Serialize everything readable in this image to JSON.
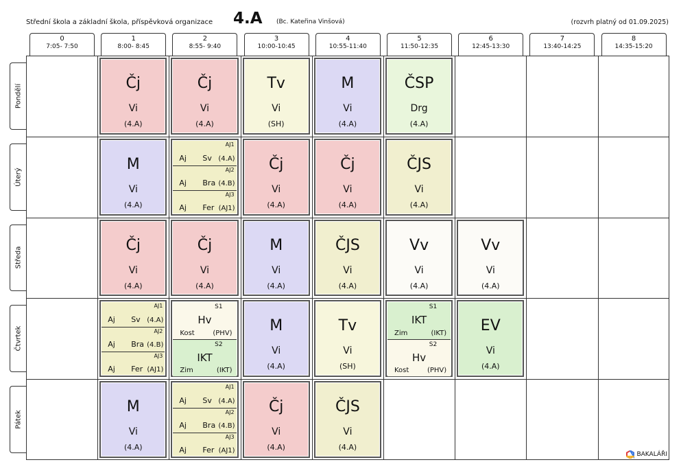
{
  "header": {
    "school": "Střední škola a základní škola, příspěvková organizace",
    "class_name": "4.A",
    "teacher": "(Bc. Kateřina Vinšová)",
    "validity": "(rozvrh platný od 01.09.2025)"
  },
  "periods": [
    {
      "num": "0",
      "time": "7:05- 7:50"
    },
    {
      "num": "1",
      "time": "8:00- 8:45"
    },
    {
      "num": "2",
      "time": "8:55- 9:40"
    },
    {
      "num": "3",
      "time": "10:00-10:45"
    },
    {
      "num": "4",
      "time": "10:55-11:40"
    },
    {
      "num": "5",
      "time": "11:50-12:35"
    },
    {
      "num": "6",
      "time": "12:45-13:30"
    },
    {
      "num": "7",
      "time": "13:40-14:25"
    },
    {
      "num": "8",
      "time": "14:35-15:20"
    }
  ],
  "days": [
    "Pondělí",
    "Úterý",
    "Středa",
    "Čtvrtek",
    "Pátek"
  ],
  "colors": {
    "cj": "#f4cccc",
    "m": "#dcd9f4",
    "tv": "#f7f6dc",
    "csp": "#e9f6dc",
    "cjs": "#f1efcf",
    "aj": "#f1efc8",
    "vv": "#fcfbf7",
    "hv": "#fbf8ea",
    "ikt": "#d9f0cf",
    "ev": "#d9f0cf"
  },
  "lessons": [
    {
      "day": 0,
      "period": 1,
      "type": "single",
      "subject": "Čj",
      "teacher": "Vi",
      "room": "(4.A)",
      "color": "cj"
    },
    {
      "day": 0,
      "period": 2,
      "type": "single",
      "subject": "Čj",
      "teacher": "Vi",
      "room": "(4.A)",
      "color": "cj"
    },
    {
      "day": 0,
      "period": 3,
      "type": "single",
      "subject": "Tv",
      "teacher": "Vi",
      "room": "(SH)",
      "color": "tv"
    },
    {
      "day": 0,
      "period": 4,
      "type": "single",
      "subject": "M",
      "teacher": "Vi",
      "room": "(4.A)",
      "color": "m"
    },
    {
      "day": 0,
      "period": 5,
      "type": "single",
      "subject": "ČSP",
      "teacher": "Drg",
      "room": "(4.A)",
      "color": "csp"
    },
    {
      "day": 1,
      "period": 1,
      "type": "single",
      "subject": "M",
      "teacher": "Vi",
      "room": "(4.A)",
      "color": "m"
    },
    {
      "day": 1,
      "period": 2,
      "type": "groups",
      "color": "aj",
      "groups": [
        {
          "name": "AJ1",
          "subject": "Aj",
          "teacher": "Sv",
          "room": "(4.A)"
        },
        {
          "name": "AJ2",
          "subject": "Aj",
          "teacher": "Bra",
          "room": "(4.B)"
        },
        {
          "name": "AJ3",
          "subject": "Aj",
          "teacher": "Fer",
          "room": "(AJ1)"
        }
      ]
    },
    {
      "day": 1,
      "period": 3,
      "type": "single",
      "subject": "Čj",
      "teacher": "Vi",
      "room": "(4.A)",
      "color": "cj"
    },
    {
      "day": 1,
      "period": 4,
      "type": "single",
      "subject": "Čj",
      "teacher": "Vi",
      "room": "(4.A)",
      "color": "cj"
    },
    {
      "day": 1,
      "period": 5,
      "type": "single",
      "subject": "ČJS",
      "teacher": "Vi",
      "room": "(4.A)",
      "color": "cjs"
    },
    {
      "day": 2,
      "period": 1,
      "type": "single",
      "subject": "Čj",
      "teacher": "Vi",
      "room": "(4.A)",
      "color": "cj"
    },
    {
      "day": 2,
      "period": 2,
      "type": "single",
      "subject": "Čj",
      "teacher": "Vi",
      "room": "(4.A)",
      "color": "cj"
    },
    {
      "day": 2,
      "period": 3,
      "type": "single",
      "subject": "M",
      "teacher": "Vi",
      "room": "(4.A)",
      "color": "m"
    },
    {
      "day": 2,
      "period": 4,
      "type": "single",
      "subject": "ČJS",
      "teacher": "Vi",
      "room": "(4.A)",
      "color": "cjs"
    },
    {
      "day": 2,
      "period": 5,
      "type": "single",
      "subject": "Vv",
      "teacher": "Vi",
      "room": "(4.A)",
      "color": "vv"
    },
    {
      "day": 2,
      "period": 6,
      "type": "single",
      "subject": "Vv",
      "teacher": "Vi",
      "room": "(4.A)",
      "color": "vv"
    },
    {
      "day": 3,
      "period": 1,
      "type": "groups",
      "color": "aj",
      "groups": [
        {
          "name": "AJ1",
          "subject": "Aj",
          "teacher": "Sv",
          "room": "(4.A)"
        },
        {
          "name": "AJ2",
          "subject": "Aj",
          "teacher": "Bra",
          "room": "(4.B)"
        },
        {
          "name": "AJ3",
          "subject": "Aj",
          "teacher": "Fer",
          "room": "(AJ1)"
        }
      ]
    },
    {
      "day": 3,
      "period": 2,
      "type": "halves",
      "halves": [
        {
          "name": "S1",
          "subject": "Hv",
          "teacher": "Kost",
          "room": "(PHV)",
          "color": "hv"
        },
        {
          "name": "S2",
          "subject": "IKT",
          "teacher": "Zim",
          "room": "(IKT)",
          "color": "ikt"
        }
      ]
    },
    {
      "day": 3,
      "period": 3,
      "type": "single",
      "subject": "M",
      "teacher": "Vi",
      "room": "(4.A)",
      "color": "m"
    },
    {
      "day": 3,
      "period": 4,
      "type": "single",
      "subject": "Tv",
      "teacher": "Vi",
      "room": "(SH)",
      "color": "tv"
    },
    {
      "day": 3,
      "period": 5,
      "type": "halves",
      "halves": [
        {
          "name": "S1",
          "subject": "IKT",
          "teacher": "Zim",
          "room": "(IKT)",
          "color": "ikt"
        },
        {
          "name": "S2",
          "subject": "Hv",
          "teacher": "Kost",
          "room": "(PHV)",
          "color": "hv"
        }
      ]
    },
    {
      "day": 3,
      "period": 6,
      "type": "single",
      "subject": "EV",
      "teacher": "Vi",
      "room": "(4.A)",
      "color": "ev"
    },
    {
      "day": 4,
      "period": 1,
      "type": "single",
      "subject": "M",
      "teacher": "Vi",
      "room": "(4.A)",
      "color": "m"
    },
    {
      "day": 4,
      "period": 2,
      "type": "groups",
      "color": "aj",
      "groups": [
        {
          "name": "AJ1",
          "subject": "Aj",
          "teacher": "Sv",
          "room": "(4.A)"
        },
        {
          "name": "AJ2",
          "subject": "Aj",
          "teacher": "Bra",
          "room": "(4.B)"
        },
        {
          "name": "AJ3",
          "subject": "Aj",
          "teacher": "Fer",
          "room": "(AJ1)"
        }
      ]
    },
    {
      "day": 4,
      "period": 3,
      "type": "single",
      "subject": "Čj",
      "teacher": "Vi",
      "room": "(4.A)",
      "color": "cj"
    },
    {
      "day": 4,
      "period": 4,
      "type": "single",
      "subject": "ČJS",
      "teacher": "Vi",
      "room": "(4.A)",
      "color": "cjs"
    }
  ],
  "logo": {
    "label": "BAKALÁŘI",
    "icon": "bakalari-logo-icon"
  }
}
